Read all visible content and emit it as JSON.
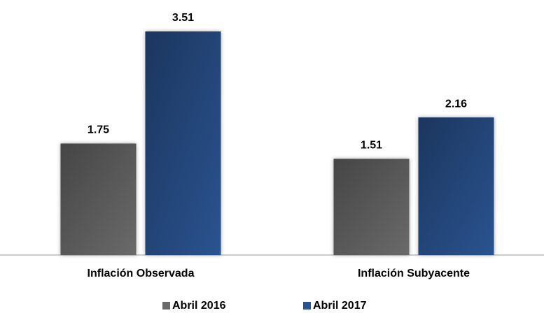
{
  "chart_data": {
    "type": "bar",
    "categories": [
      "Inflación Observada",
      "Inflación Subyacente"
    ],
    "series": [
      {
        "name": "Abril 2016",
        "color": "#6a6a6a",
        "values": [
          1.75,
          1.51
        ]
      },
      {
        "name": "Abril 2017",
        "color": "#2a5390",
        "values": [
          3.51,
          2.16
        ]
      }
    ],
    "legend": "bottom"
  }
}
